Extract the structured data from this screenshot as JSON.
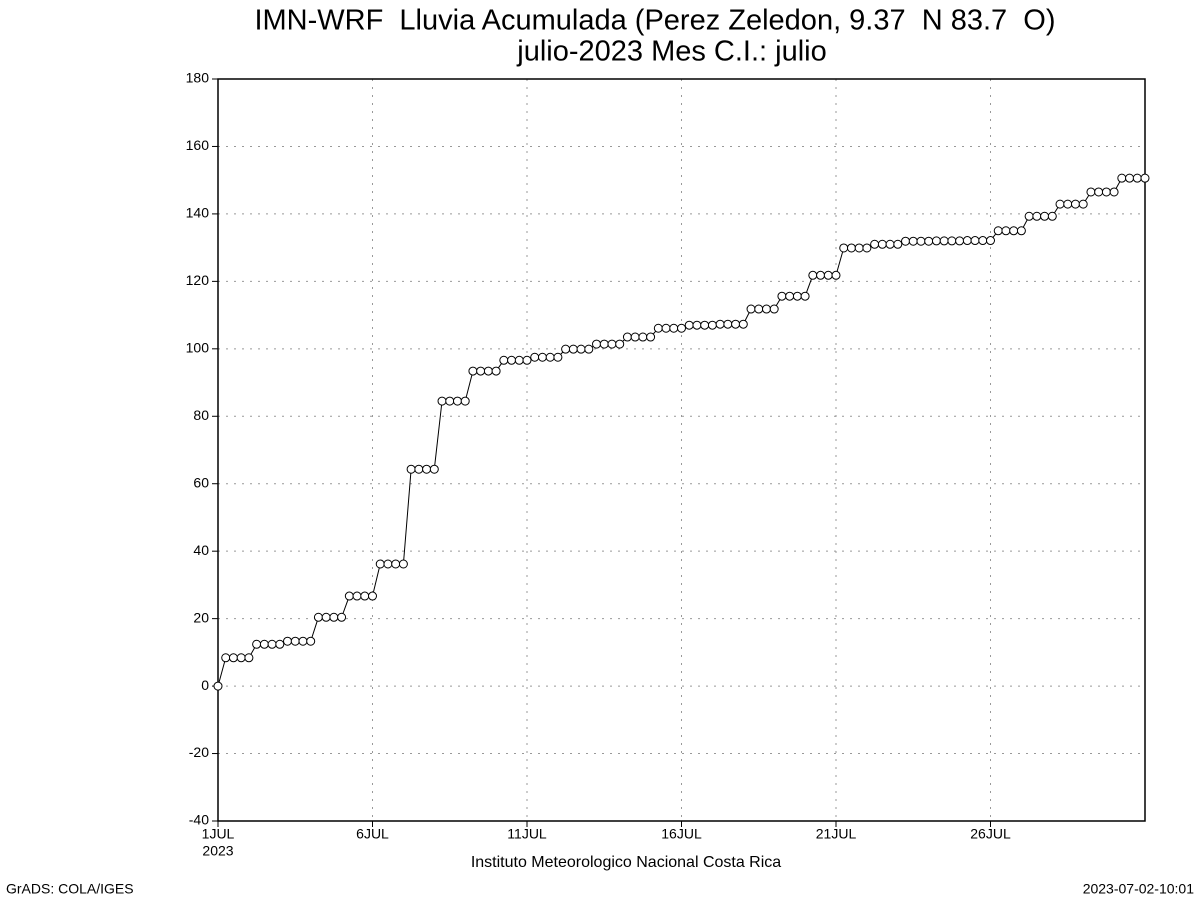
{
  "chart_data": {
    "type": "line",
    "title": "IMN-WRF  Lluvia Acumulada (Perez Zeledon, 9.37  N 83.7  O)",
    "subtitle": "julio-2023 Mes C.I.: julio",
    "xlabel": "Instituto Meteorologico Nacional Costa Rica",
    "year_label": "2023",
    "footer_left": "GrADS: COLA/IGES",
    "footer_right": "2023-07-02-10:01",
    "color": "#000000",
    "marker": "circle",
    "grid": true,
    "xlim": [
      0,
      30
    ],
    "xticks": [
      {
        "value": 0,
        "label": "1JUL"
      },
      {
        "value": 5,
        "label": "6JUL"
      },
      {
        "value": 10,
        "label": "11JUL"
      },
      {
        "value": 15,
        "label": "16JUL"
      },
      {
        "value": 20,
        "label": "21JUL"
      },
      {
        "value": 25,
        "label": "26JUL"
      }
    ],
    "ylim": [
      -40,
      180
    ],
    "yticks": [
      -40,
      -20,
      0,
      20,
      40,
      60,
      80,
      100,
      120,
      140,
      160,
      180
    ],
    "x": [
      0,
      0.25,
      0.5,
      0.75,
      1,
      1.25,
      1.5,
      1.75,
      2,
      2.25,
      2.5,
      2.75,
      3,
      3.25,
      3.5,
      3.75,
      4,
      4.25,
      4.5,
      4.75,
      5,
      5.25,
      5.5,
      5.75,
      6,
      6.25,
      6.5,
      6.75,
      7,
      7.25,
      7.5,
      7.75,
      8,
      8.25,
      8.5,
      8.75,
      9,
      9.25,
      9.5,
      9.75,
      10,
      10.25,
      10.5,
      10.75,
      11,
      11.25,
      11.5,
      11.75,
      12,
      12.25,
      12.5,
      12.75,
      13,
      13.25,
      13.5,
      13.75,
      14,
      14.25,
      14.5,
      14.75,
      15,
      15.25,
      15.5,
      15.75,
      16,
      16.25,
      16.5,
      16.75,
      17,
      17.25,
      17.5,
      17.75,
      18,
      18.25,
      18.5,
      18.75,
      19,
      19.25,
      19.5,
      19.75,
      20,
      20.25,
      20.5,
      20.75,
      21,
      21.25,
      21.5,
      21.75,
      22,
      22.25,
      22.5,
      22.75,
      23,
      23.25,
      23.5,
      23.75,
      24,
      24.25,
      24.5,
      24.75,
      25,
      25.25,
      25.5,
      25.75,
      26,
      26.25,
      26.5,
      26.75,
      27,
      27.25,
      27.5,
      27.75,
      28,
      28.25,
      28.5,
      28.75,
      29,
      29.25,
      29.5,
      29.75,
      30
    ],
    "values": [
      0,
      8.4,
      8.4,
      8.4,
      8.4,
      12.4,
      12.4,
      12.4,
      12.4,
      13.3,
      13.3,
      13.3,
      13.3,
      20.4,
      20.4,
      20.4,
      20.4,
      26.7,
      26.7,
      26.7,
      26.7,
      36.2,
      36.2,
      36.2,
      36.2,
      64.3,
      64.3,
      64.3,
      64.3,
      84.5,
      84.5,
      84.5,
      84.5,
      93.4,
      93.4,
      93.4,
      93.4,
      96.6,
      96.6,
      96.6,
      96.6,
      97.5,
      97.5,
      97.5,
      97.5,
      99.9,
      99.9,
      99.9,
      99.9,
      101.4,
      101.4,
      101.4,
      101.4,
      103.5,
      103.5,
      103.5,
      103.5,
      106.1,
      106.1,
      106.1,
      106.1,
      107.0,
      107.0,
      107.0,
      107.0,
      107.3,
      107.3,
      107.3,
      107.3,
      111.8,
      111.8,
      111.8,
      111.8,
      115.6,
      115.6,
      115.6,
      115.6,
      121.8,
      121.8,
      121.8,
      121.8,
      129.9,
      129.9,
      129.9,
      129.9,
      131.0,
      131.0,
      131.0,
      131.0,
      131.9,
      131.9,
      131.9,
      131.9,
      132.0,
      132.0,
      132.0,
      132.0,
      132.1,
      132.1,
      132.1,
      132.1,
      135.0,
      135.0,
      135.0,
      135.0,
      139.3,
      139.3,
      139.3,
      139.3,
      142.9,
      142.9,
      142.9,
      142.9,
      146.5,
      146.5,
      146.5,
      146.5,
      150.6,
      150.6,
      150.6,
      150.6
    ]
  }
}
